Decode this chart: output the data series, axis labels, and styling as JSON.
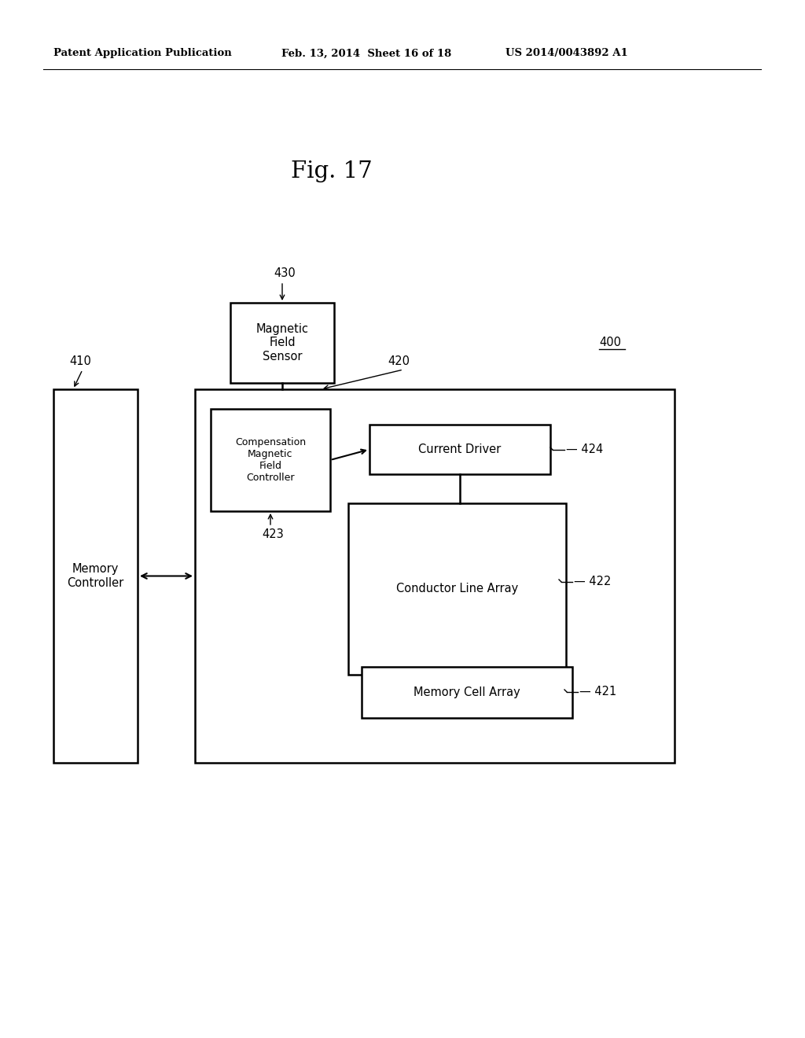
{
  "bg_color": "#ffffff",
  "header_left": "Patent Application Publication",
  "header_mid": "Feb. 13, 2014  Sheet 16 of 18",
  "header_right": "US 2014/0043892 A1",
  "fig_title": "Fig. 17",
  "label_400": "400",
  "label_430": "430",
  "label_410": "410",
  "label_420": "420",
  "label_424": "424",
  "label_423": "423",
  "label_422": "422",
  "label_421": "421",
  "text_mfs": "Magnetic\nField\nSensor",
  "text_cmfc": "Compensation\nMagnetic\nField\nController",
  "text_cd": "Current Driver",
  "text_cla": "Conductor Line Array",
  "text_mca": "Memory Cell Array",
  "text_mc": "Memory\nController",
  "lw": 1.8,
  "font_size": 10.5,
  "label_font": 10.5
}
